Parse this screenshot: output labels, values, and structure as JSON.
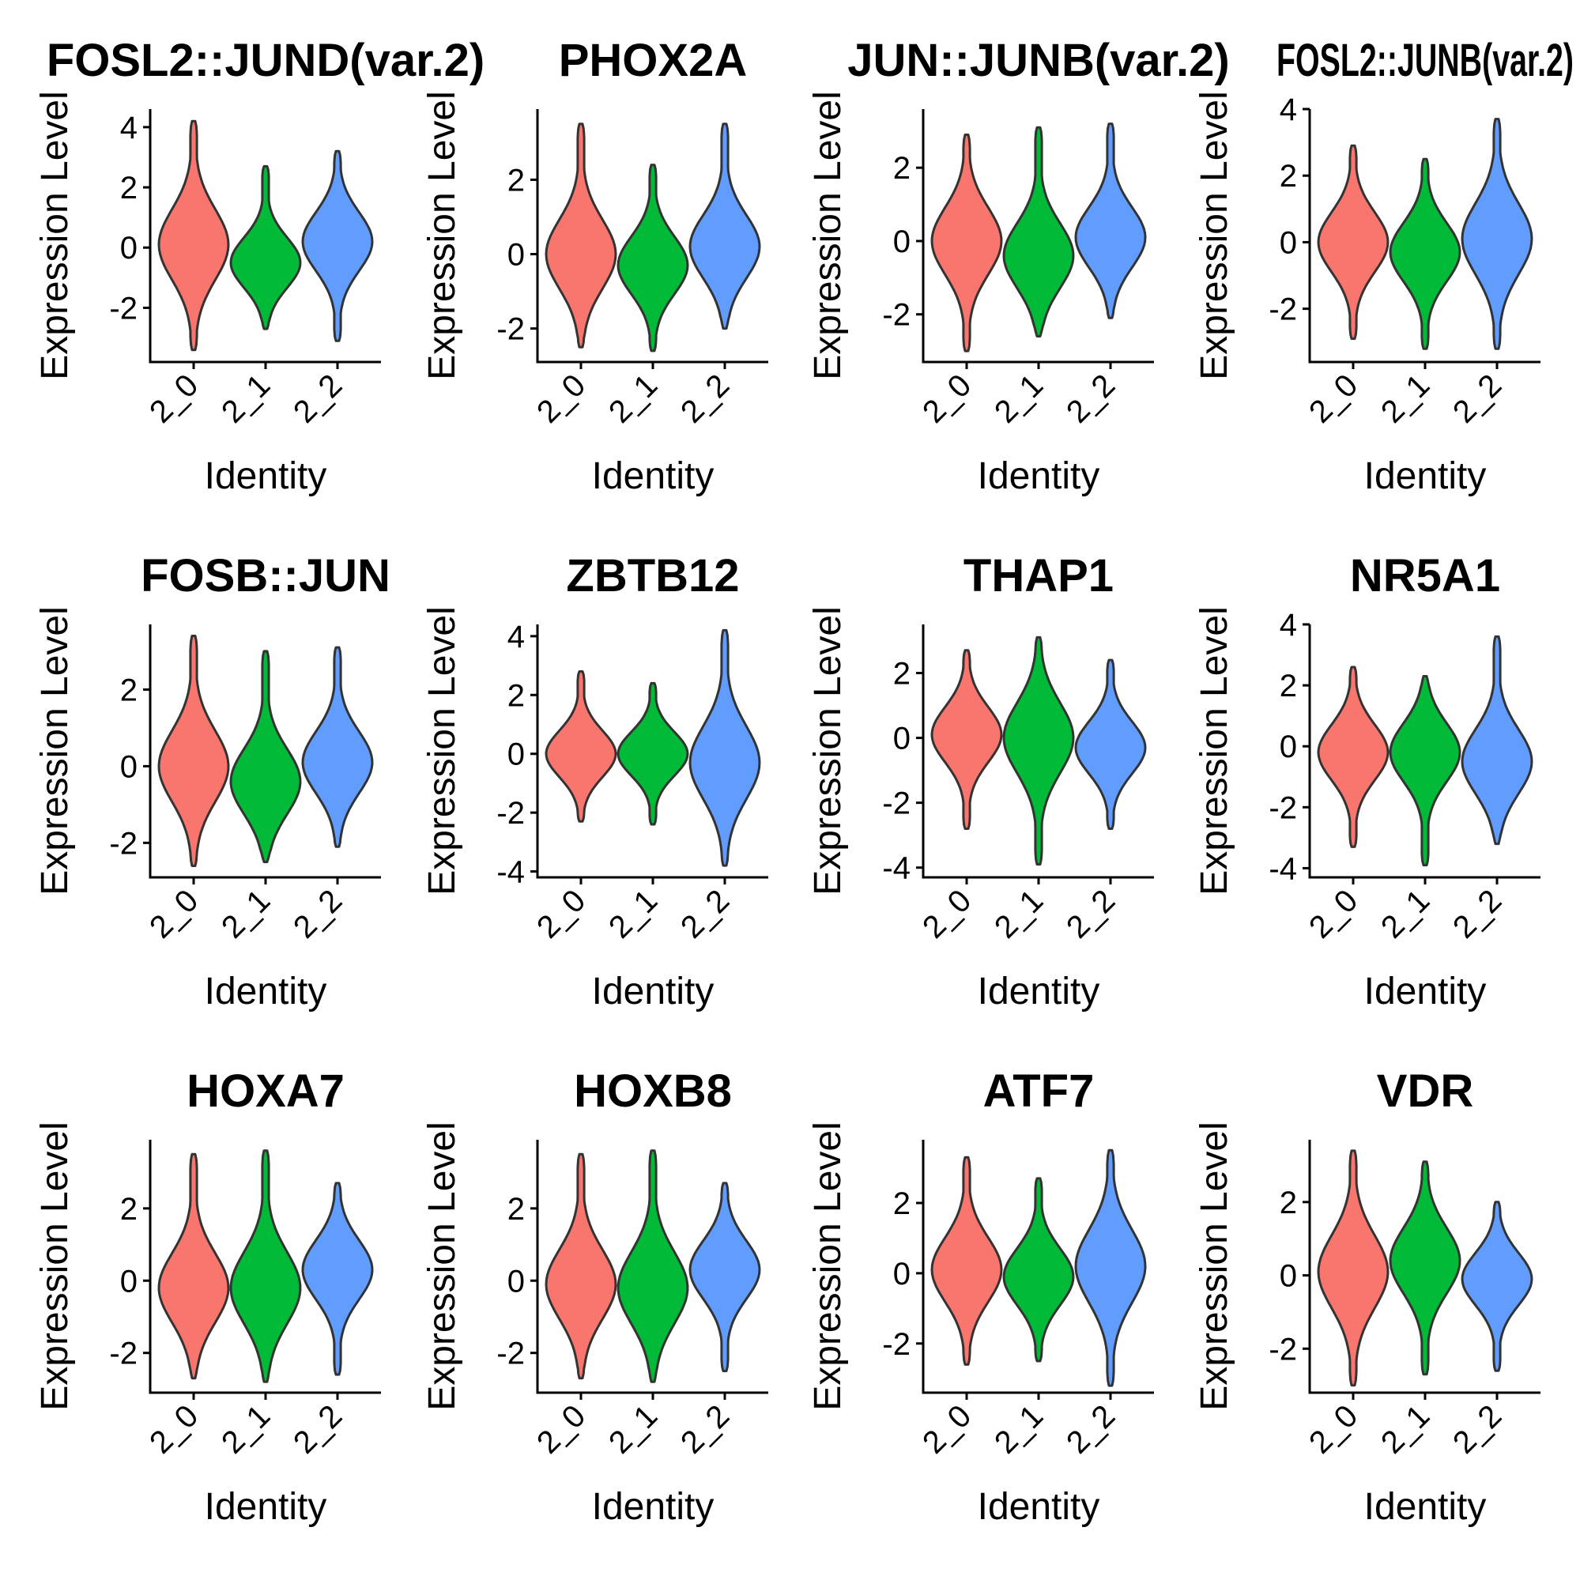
{
  "chart_data": [
    {
      "type": "violin",
      "title": "FOSL2::JUND(var.2)",
      "xlabel": "Identity",
      "ylabel": "Expression Level",
      "categories": [
        "2_0",
        "2_1",
        "2_2"
      ],
      "yticks": [
        -2,
        0,
        2,
        4
      ],
      "ylim": [
        -3.8,
        4.6
      ],
      "series": [
        {
          "category": "2_0",
          "min": -3.4,
          "max": 4.2,
          "median": 0.1
        },
        {
          "category": "2_1",
          "min": -2.7,
          "max": 2.7,
          "median": -0.5
        },
        {
          "category": "2_2",
          "min": -3.1,
          "max": 3.2,
          "median": 0.2
        }
      ]
    },
    {
      "type": "violin",
      "title": "PHOX2A",
      "xlabel": "Identity",
      "ylabel": "Expression Level",
      "categories": [
        "2_0",
        "2_1",
        "2_2"
      ],
      "yticks": [
        -2,
        0,
        2
      ],
      "ylim": [
        -2.9,
        3.9
      ],
      "series": [
        {
          "category": "2_0",
          "min": -2.5,
          "max": 3.5,
          "median": 0.0
        },
        {
          "category": "2_1",
          "min": -2.6,
          "max": 2.4,
          "median": -0.3
        },
        {
          "category": "2_2",
          "min": -2.0,
          "max": 3.5,
          "median": 0.2
        }
      ]
    },
    {
      "type": "violin",
      "title": "JUN::JUNB(var.2)",
      "xlabel": "Identity",
      "ylabel": "Expression Level",
      "categories": [
        "2_0",
        "2_1",
        "2_2"
      ],
      "yticks": [
        -2,
        0,
        2
      ],
      "ylim": [
        -3.3,
        3.6
      ],
      "series": [
        {
          "category": "2_0",
          "min": -3.0,
          "max": 2.9,
          "median": 0.0
        },
        {
          "category": "2_1",
          "min": -2.6,
          "max": 3.1,
          "median": -0.4
        },
        {
          "category": "2_2",
          "min": -2.1,
          "max": 3.2,
          "median": 0.1
        }
      ]
    },
    {
      "type": "violin",
      "title": "FOSL2::JUNB(var.2)",
      "xlabel": "Identity",
      "ylabel": "Expression Level",
      "categories": [
        "2_0",
        "2_1",
        "2_2"
      ],
      "yticks": [
        -2,
        0,
        2,
        4
      ],
      "ylim": [
        -3.6,
        4.0
      ],
      "series": [
        {
          "category": "2_0",
          "min": -2.9,
          "max": 2.9,
          "median": 0.0
        },
        {
          "category": "2_1",
          "min": -3.2,
          "max": 2.5,
          "median": -0.3
        },
        {
          "category": "2_2",
          "min": -3.2,
          "max": 3.7,
          "median": 0.1
        }
      ]
    },
    {
      "type": "violin",
      "title": "FOSB::JUN",
      "xlabel": "Identity",
      "ylabel": "Expression Level",
      "categories": [
        "2_0",
        "2_1",
        "2_2"
      ],
      "yticks": [
        -2,
        0,
        2
      ],
      "ylim": [
        -2.9,
        3.7
      ],
      "series": [
        {
          "category": "2_0",
          "min": -2.6,
          "max": 3.4,
          "median": 0.0
        },
        {
          "category": "2_1",
          "min": -2.5,
          "max": 3.0,
          "median": -0.4
        },
        {
          "category": "2_2",
          "min": -2.1,
          "max": 3.1,
          "median": 0.1
        }
      ]
    },
    {
      "type": "violin",
      "title": "ZBTB12",
      "xlabel": "Identity",
      "ylabel": "Expression Level",
      "categories": [
        "2_0",
        "2_1",
        "2_2"
      ],
      "yticks": [
        -4,
        -2,
        0,
        2,
        4
      ],
      "ylim": [
        -4.2,
        4.4
      ],
      "series": [
        {
          "category": "2_0",
          "min": -2.3,
          "max": 2.8,
          "median": 0.0
        },
        {
          "category": "2_1",
          "min": -2.4,
          "max": 2.4,
          "median": 0.0
        },
        {
          "category": "2_2",
          "min": -3.8,
          "max": 4.2,
          "median": -0.3
        }
      ]
    },
    {
      "type": "violin",
      "title": "THAP1",
      "xlabel": "Identity",
      "ylabel": "Expression Level",
      "categories": [
        "2_0",
        "2_1",
        "2_2"
      ],
      "yticks": [
        -4,
        -2,
        0,
        2
      ],
      "ylim": [
        -4.3,
        3.5
      ],
      "series": [
        {
          "category": "2_0",
          "min": -2.8,
          "max": 2.7,
          "median": 0.1
        },
        {
          "category": "2_1",
          "min": -3.9,
          "max": 3.1,
          "median": 0.0
        },
        {
          "category": "2_2",
          "min": -2.8,
          "max": 2.4,
          "median": -0.3
        }
      ]
    },
    {
      "type": "violin",
      "title": "NR5A1",
      "xlabel": "Identity",
      "ylabel": "Expression Level",
      "categories": [
        "2_0",
        "2_1",
        "2_2"
      ],
      "yticks": [
        -4,
        -2,
        0,
        2,
        4
      ],
      "ylim": [
        -4.3,
        4.0
      ],
      "series": [
        {
          "category": "2_0",
          "min": -3.3,
          "max": 2.6,
          "median": -0.2
        },
        {
          "category": "2_1",
          "min": -3.9,
          "max": 2.3,
          "median": -0.2
        },
        {
          "category": "2_2",
          "min": -3.2,
          "max": 3.6,
          "median": -0.5
        }
      ]
    },
    {
      "type": "violin",
      "title": "HOXA7",
      "xlabel": "Identity",
      "ylabel": "Expression Level",
      "categories": [
        "2_0",
        "2_1",
        "2_2"
      ],
      "yticks": [
        -2,
        0,
        2
      ],
      "ylim": [
        -3.1,
        3.9
      ],
      "series": [
        {
          "category": "2_0",
          "min": -2.7,
          "max": 3.5,
          "median": -0.2
        },
        {
          "category": "2_1",
          "min": -2.8,
          "max": 3.6,
          "median": -0.2
        },
        {
          "category": "2_2",
          "min": -2.6,
          "max": 2.7,
          "median": 0.3
        }
      ]
    },
    {
      "type": "violin",
      "title": "HOXB8",
      "xlabel": "Identity",
      "ylabel": "Expression Level",
      "categories": [
        "2_0",
        "2_1",
        "2_2"
      ],
      "yticks": [
        -2,
        0,
        2
      ],
      "ylim": [
        -3.1,
        3.9
      ],
      "series": [
        {
          "category": "2_0",
          "min": -2.7,
          "max": 3.5,
          "median": -0.1
        },
        {
          "category": "2_1",
          "min": -2.8,
          "max": 3.6,
          "median": -0.2
        },
        {
          "category": "2_2",
          "min": -2.5,
          "max": 2.7,
          "median": 0.3
        }
      ]
    },
    {
      "type": "violin",
      "title": "ATF7",
      "xlabel": "Identity",
      "ylabel": "Expression Level",
      "categories": [
        "2_0",
        "2_1",
        "2_2"
      ],
      "yticks": [
        -2,
        0,
        2
      ],
      "ylim": [
        -3.4,
        3.8
      ],
      "series": [
        {
          "category": "2_0",
          "min": -2.6,
          "max": 3.3,
          "median": 0.1
        },
        {
          "category": "2_1",
          "min": -2.5,
          "max": 2.7,
          "median": -0.1
        },
        {
          "category": "2_2",
          "min": -3.2,
          "max": 3.5,
          "median": 0.2
        }
      ]
    },
    {
      "type": "violin",
      "title": "VDR",
      "xlabel": "Identity",
      "ylabel": "Expression Level",
      "categories": [
        "2_0",
        "2_1",
        "2_2"
      ],
      "yticks": [
        -2,
        0,
        2
      ],
      "ylim": [
        -3.2,
        3.7
      ],
      "series": [
        {
          "category": "2_0",
          "min": -3.0,
          "max": 3.4,
          "median": 0.1
        },
        {
          "category": "2_1",
          "min": -2.7,
          "max": 3.1,
          "median": 0.4
        },
        {
          "category": "2_2",
          "min": -2.6,
          "max": 2.0,
          "median": -0.1
        }
      ]
    }
  ],
  "colors": {
    "2_0": "#F8766D",
    "2_1": "#00BA38",
    "2_2": "#619CFF"
  }
}
